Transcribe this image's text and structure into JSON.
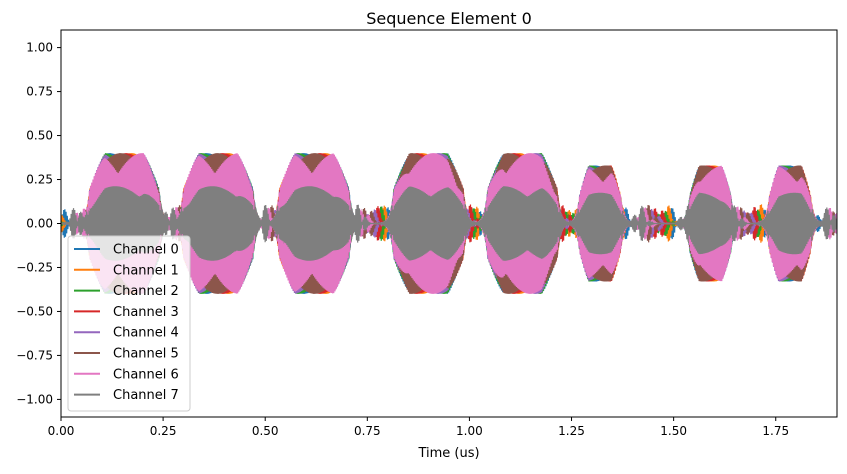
{
  "chart_data": {
    "type": "line",
    "title": "Sequence Element 0",
    "xlabel": "Time (us)",
    "ylabel": "",
    "xlim": [
      0.0,
      1.9
    ],
    "ylim": [
      -1.1,
      1.1
    ],
    "xticks": [
      {
        "value": 0.0,
        "label": "0.00"
      },
      {
        "value": 0.25,
        "label": "0.25"
      },
      {
        "value": 0.5,
        "label": "0.50"
      },
      {
        "value": 0.75,
        "label": "0.75"
      },
      {
        "value": 1.0,
        "label": "1.00"
      },
      {
        "value": 1.25,
        "label": "1.25"
      },
      {
        "value": 1.5,
        "label": "1.50"
      },
      {
        "value": 1.75,
        "label": "1.75"
      }
    ],
    "yticks": [
      {
        "value": 1.0,
        "label": "1.00"
      },
      {
        "value": 0.75,
        "label": "0.75"
      },
      {
        "value": 0.5,
        "label": "0.50"
      },
      {
        "value": 0.25,
        "label": "0.25"
      },
      {
        "value": 0.0,
        "label": "0.00"
      },
      {
        "value": -0.25,
        "label": "−0.25"
      },
      {
        "value": -0.5,
        "label": "−0.50"
      },
      {
        "value": -0.75,
        "label": "−0.75"
      },
      {
        "value": -1.0,
        "label": "−1.00"
      }
    ],
    "grid": false,
    "legend_position": "lower-left",
    "pulses": [
      {
        "center": 0.155,
        "width": 0.17,
        "amp": 0.4
      },
      {
        "center": 0.385,
        "width": 0.17,
        "amp": 0.4
      },
      {
        "center": 0.62,
        "width": 0.17,
        "amp": 0.4
      },
      {
        "center": 0.9,
        "width": 0.17,
        "amp": 0.4
      },
      {
        "center": 1.13,
        "width": 0.17,
        "amp": 0.4
      },
      {
        "center": 1.32,
        "width": 0.1,
        "amp": 0.33
      },
      {
        "center": 1.59,
        "width": 0.1,
        "amp": 0.33
      },
      {
        "center": 1.785,
        "width": 0.1,
        "amp": 0.33
      }
    ],
    "series": [
      {
        "name": "Channel 0",
        "color": "#1f77b4"
      },
      {
        "name": "Channel 1",
        "color": "#ff7f0e"
      },
      {
        "name": "Channel 2",
        "color": "#2ca02c"
      },
      {
        "name": "Channel 3",
        "color": "#d62728"
      },
      {
        "name": "Channel 4",
        "color": "#9467bd"
      },
      {
        "name": "Channel 5",
        "color": "#8c564b"
      },
      {
        "name": "Channel 6",
        "color": "#e377c2"
      },
      {
        "name": "Channel 7",
        "color": "#7f7f7f"
      }
    ]
  }
}
